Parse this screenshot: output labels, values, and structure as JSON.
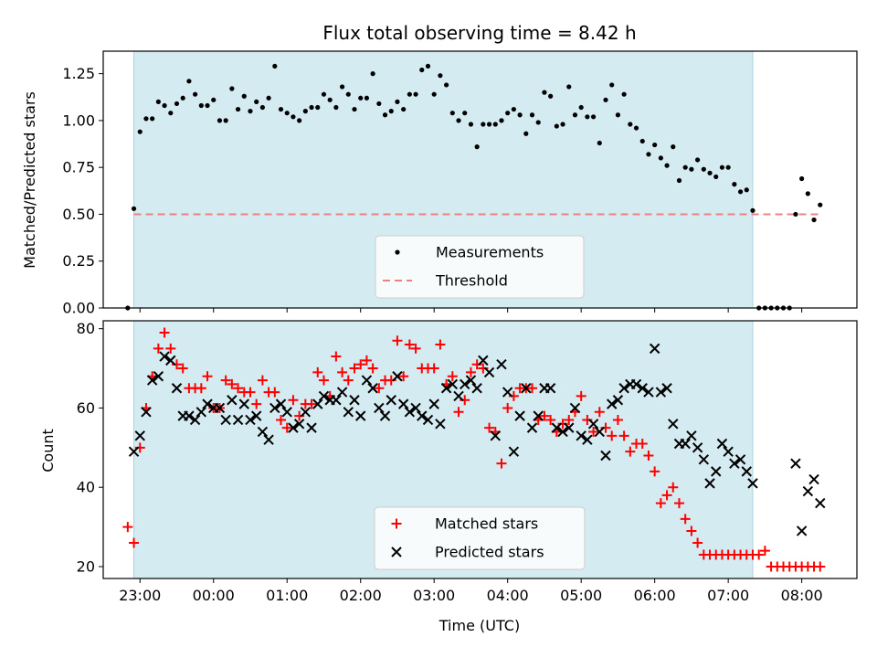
{
  "chart_data": [
    {
      "type": "scatter",
      "title": "Flux total observing time = 8.42 h",
      "xlabel": "",
      "ylabel": "Matched/Predicted stars",
      "xlim": [
        "22:30",
        "08:45"
      ],
      "ylim": [
        0,
        1.37
      ],
      "yticks": [
        "0.00",
        "0.25",
        "0.50",
        "0.75",
        "1.00",
        "1.25"
      ],
      "observing_window": [
        "22:55",
        "07:20"
      ],
      "legend_position": "lower center",
      "colors": {
        "window": "#d4ebf1",
        "window_edge": "#a9d3df",
        "threshold": "#f08080",
        "points": "#000000"
      },
      "series": [
        {
          "name": "Measurements",
          "style": "dots",
          "x": [
            "22:50",
            "22:55",
            "23:00",
            "23:05",
            "23:10",
            "23:15",
            "23:20",
            "23:25",
            "23:30",
            "23:35",
            "23:40",
            "23:45",
            "23:50",
            "23:55",
            "00:00",
            "00:05",
            "00:10",
            "00:15",
            "00:20",
            "00:25",
            "00:30",
            "00:35",
            "00:40",
            "00:45",
            "00:50",
            "00:55",
            "01:00",
            "01:05",
            "01:10",
            "01:15",
            "01:20",
            "01:25",
            "01:30",
            "01:35",
            "01:40",
            "01:45",
            "01:50",
            "01:55",
            "02:00",
            "02:05",
            "02:10",
            "02:15",
            "02:20",
            "02:25",
            "02:30",
            "02:35",
            "02:40",
            "02:45",
            "02:50",
            "02:55",
            "03:00",
            "03:05",
            "03:10",
            "03:15",
            "03:20",
            "03:25",
            "03:30",
            "03:35",
            "03:40",
            "03:45",
            "03:50",
            "03:55",
            "04:00",
            "04:05",
            "04:10",
            "04:15",
            "04:20",
            "04:25",
            "04:30",
            "04:35",
            "04:40",
            "04:45",
            "04:50",
            "04:55",
            "05:00",
            "05:05",
            "05:10",
            "05:15",
            "05:20",
            "05:25",
            "05:30",
            "05:35",
            "05:40",
            "05:45",
            "05:50",
            "05:55",
            "06:00",
            "06:05",
            "06:10",
            "06:15",
            "06:20",
            "06:25",
            "06:30",
            "06:35",
            "06:40",
            "06:45",
            "06:50",
            "06:55",
            "07:00",
            "07:05",
            "07:10",
            "07:15",
            "07:20",
            "07:25",
            "07:30",
            "07:35",
            "07:40",
            "07:45",
            "07:50",
            "07:55",
            "08:00",
            "08:05",
            "08:10",
            "08:15"
          ],
          "y": [
            0.0,
            0.53,
            0.94,
            1.01,
            1.01,
            1.1,
            1.08,
            1.04,
            1.09,
            1.12,
            1.21,
            1.14,
            1.08,
            1.08,
            1.11,
            1.0,
            1.0,
            1.17,
            1.06,
            1.13,
            1.05,
            1.1,
            1.07,
            1.12,
            1.29,
            1.06,
            1.04,
            1.02,
            1.0,
            1.05,
            1.07,
            1.07,
            1.14,
            1.11,
            1.07,
            1.18,
            1.14,
            1.06,
            1.12,
            1.12,
            1.25,
            1.09,
            1.03,
            1.05,
            1.1,
            1.06,
            1.14,
            1.14,
            1.27,
            1.29,
            1.14,
            1.24,
            1.19,
            1.04,
            1.0,
            1.04,
            0.98,
            0.86,
            0.98,
            0.98,
            0.98,
            1.0,
            1.04,
            1.06,
            1.03,
            0.93,
            1.03,
            0.99,
            1.15,
            1.13,
            0.97,
            0.98,
            1.18,
            1.03,
            1.07,
            1.02,
            1.02,
            0.88,
            1.11,
            1.19,
            1.03,
            1.14,
            0.98,
            0.96,
            0.89,
            0.82,
            0.87,
            0.8,
            0.76,
            0.86,
            0.68,
            0.75,
            0.74,
            0.79,
            0.74,
            0.72,
            0.7,
            0.75,
            0.75,
            0.66,
            0.62,
            0.63,
            0.52,
            0.0,
            0.0,
            0.0,
            0.0,
            0.0,
            0.0,
            0.5,
            0.69,
            0.61,
            0.47,
            0.55
          ]
        },
        {
          "name": "Threshold",
          "style": "dashed-line",
          "x": [
            "22:55",
            "08:15"
          ],
          "y": [
            0.5,
            0.5
          ]
        }
      ]
    },
    {
      "type": "scatter",
      "title": "",
      "xlabel": "Time (UTC)",
      "ylabel": "Count",
      "xlim": [
        "22:30",
        "08:45"
      ],
      "ylim": [
        17,
        82
      ],
      "yticks": [
        "20",
        "40",
        "60",
        "80"
      ],
      "xticks": [
        "23:00",
        "00:00",
        "01:00",
        "02:00",
        "03:00",
        "04:00",
        "05:00",
        "06:00",
        "07:00",
        "08:00"
      ],
      "observing_window": [
        "22:55",
        "07:20"
      ],
      "legend_position": "lower center",
      "colors": {
        "matched": "#ff0000",
        "predicted": "#000000",
        "window": "#d4ebf1"
      },
      "series": [
        {
          "name": "Matched stars",
          "marker": "plus",
          "x": [
            "22:50",
            "22:55",
            "23:00",
            "23:05",
            "23:10",
            "23:15",
            "23:20",
            "23:25",
            "23:30",
            "23:35",
            "23:40",
            "23:45",
            "23:50",
            "23:55",
            "00:00",
            "00:05",
            "00:10",
            "00:15",
            "00:20",
            "00:25",
            "00:30",
            "00:35",
            "00:40",
            "00:45",
            "00:50",
            "00:55",
            "01:00",
            "01:05",
            "01:10",
            "01:15",
            "01:20",
            "01:25",
            "01:30",
            "01:35",
            "01:40",
            "01:45",
            "01:50",
            "01:55",
            "02:00",
            "02:05",
            "02:10",
            "02:15",
            "02:20",
            "02:25",
            "02:30",
            "02:35",
            "02:40",
            "02:45",
            "02:50",
            "02:55",
            "03:00",
            "03:05",
            "03:10",
            "03:15",
            "03:20",
            "03:25",
            "03:30",
            "03:35",
            "03:40",
            "03:45",
            "03:50",
            "03:55",
            "04:00",
            "04:05",
            "04:10",
            "04:15",
            "04:20",
            "04:25",
            "04:30",
            "04:35",
            "04:40",
            "04:45",
            "04:50",
            "04:55",
            "05:00",
            "05:05",
            "05:10",
            "05:15",
            "05:20",
            "05:25",
            "05:30",
            "05:35",
            "05:40",
            "05:45",
            "05:50",
            "05:55",
            "06:00",
            "06:05",
            "06:10",
            "06:15",
            "06:20",
            "06:25",
            "06:30",
            "06:35",
            "06:40",
            "06:45",
            "06:50",
            "06:55",
            "07:00",
            "07:05",
            "07:10",
            "07:15",
            "07:20",
            "07:25",
            "07:30",
            "07:35",
            "07:40",
            "07:45",
            "07:50",
            "07:55",
            "08:00",
            "08:05",
            "08:10",
            "08:15"
          ],
          "y": [
            30,
            26,
            50,
            60,
            68,
            75,
            79,
            75,
            71,
            70,
            65,
            65,
            65,
            68,
            60,
            60,
            67,
            66,
            65,
            64,
            64,
            61,
            67,
            64,
            64,
            57,
            55,
            62,
            58,
            61,
            61,
            69,
            67,
            63,
            73,
            69,
            67,
            70,
            71,
            72,
            70,
            65,
            67,
            67,
            77,
            68,
            76,
            75,
            70,
            70,
            70,
            76,
            66,
            68,
            59,
            62,
            69,
            71,
            70,
            55,
            54,
            46,
            60,
            63,
            65,
            65,
            65,
            57,
            58,
            57,
            54,
            56,
            57,
            59,
            63,
            57,
            54,
            59,
            55,
            53,
            57,
            53,
            49,
            51,
            51,
            48,
            44,
            36,
            38,
            40,
            36,
            32,
            29,
            26,
            23,
            23,
            23,
            23,
            23,
            23,
            23,
            23,
            23,
            23,
            24,
            20,
            20,
            20,
            20,
            20,
            20,
            20,
            20,
            20
          ]
        },
        {
          "name": "Predicted stars",
          "marker": "x",
          "x": [
            "22:55",
            "23:00",
            "23:05",
            "23:10",
            "23:15",
            "23:20",
            "23:25",
            "23:30",
            "23:35",
            "23:40",
            "23:45",
            "23:50",
            "23:55",
            "00:00",
            "00:05",
            "00:10",
            "00:15",
            "00:20",
            "00:25",
            "00:30",
            "00:35",
            "00:40",
            "00:45",
            "00:50",
            "00:55",
            "01:00",
            "01:05",
            "01:10",
            "01:15",
            "01:20",
            "01:25",
            "01:30",
            "01:35",
            "01:40",
            "01:45",
            "01:50",
            "01:55",
            "02:00",
            "02:05",
            "02:10",
            "02:15",
            "02:20",
            "02:25",
            "02:30",
            "02:35",
            "02:40",
            "02:45",
            "02:50",
            "02:55",
            "03:00",
            "03:05",
            "03:10",
            "03:15",
            "03:20",
            "03:25",
            "03:30",
            "03:35",
            "03:40",
            "03:45",
            "03:50",
            "03:55",
            "04:00",
            "04:05",
            "04:10",
            "04:15",
            "04:20",
            "04:25",
            "04:30",
            "04:35",
            "04:40",
            "04:45",
            "04:50",
            "04:55",
            "05:00",
            "05:05",
            "05:10",
            "05:15",
            "05:20",
            "05:25",
            "05:30",
            "05:35",
            "05:40",
            "05:45",
            "05:50",
            "05:55",
            "06:00",
            "06:05",
            "06:10",
            "06:15",
            "06:20",
            "06:25",
            "06:30",
            "06:35",
            "06:40",
            "06:45",
            "06:50",
            "06:55",
            "07:00",
            "07:05",
            "07:10",
            "07:15",
            "07:20",
            "07:55",
            "08:00",
            "08:05",
            "08:10",
            "08:15"
          ],
          "y": [
            49,
            53,
            59,
            67,
            68,
            73,
            72,
            65,
            58,
            58,
            57,
            59,
            61,
            60,
            60,
            57,
            62,
            57,
            61,
            57,
            58,
            54,
            52,
            60,
            61,
            59,
            55,
            56,
            59,
            55,
            61,
            63,
            62,
            62,
            64,
            59,
            62,
            58,
            67,
            65,
            60,
            58,
            62,
            68,
            61,
            59,
            60,
            58,
            57,
            61,
            56,
            65,
            66,
            63,
            66,
            67,
            65,
            72,
            69,
            53,
            71,
            64,
            49,
            58,
            65,
            55,
            58,
            65,
            65,
            55,
            54,
            55,
            60,
            53,
            52,
            56,
            54,
            48,
            61,
            62,
            65,
            66,
            66,
            65,
            64,
            75,
            64,
            65,
            56,
            51,
            51,
            53,
            50,
            47,
            41,
            44,
            51,
            49,
            46,
            47,
            44,
            41,
            46,
            29,
            39,
            42,
            36
          ]
        }
      ]
    }
  ]
}
